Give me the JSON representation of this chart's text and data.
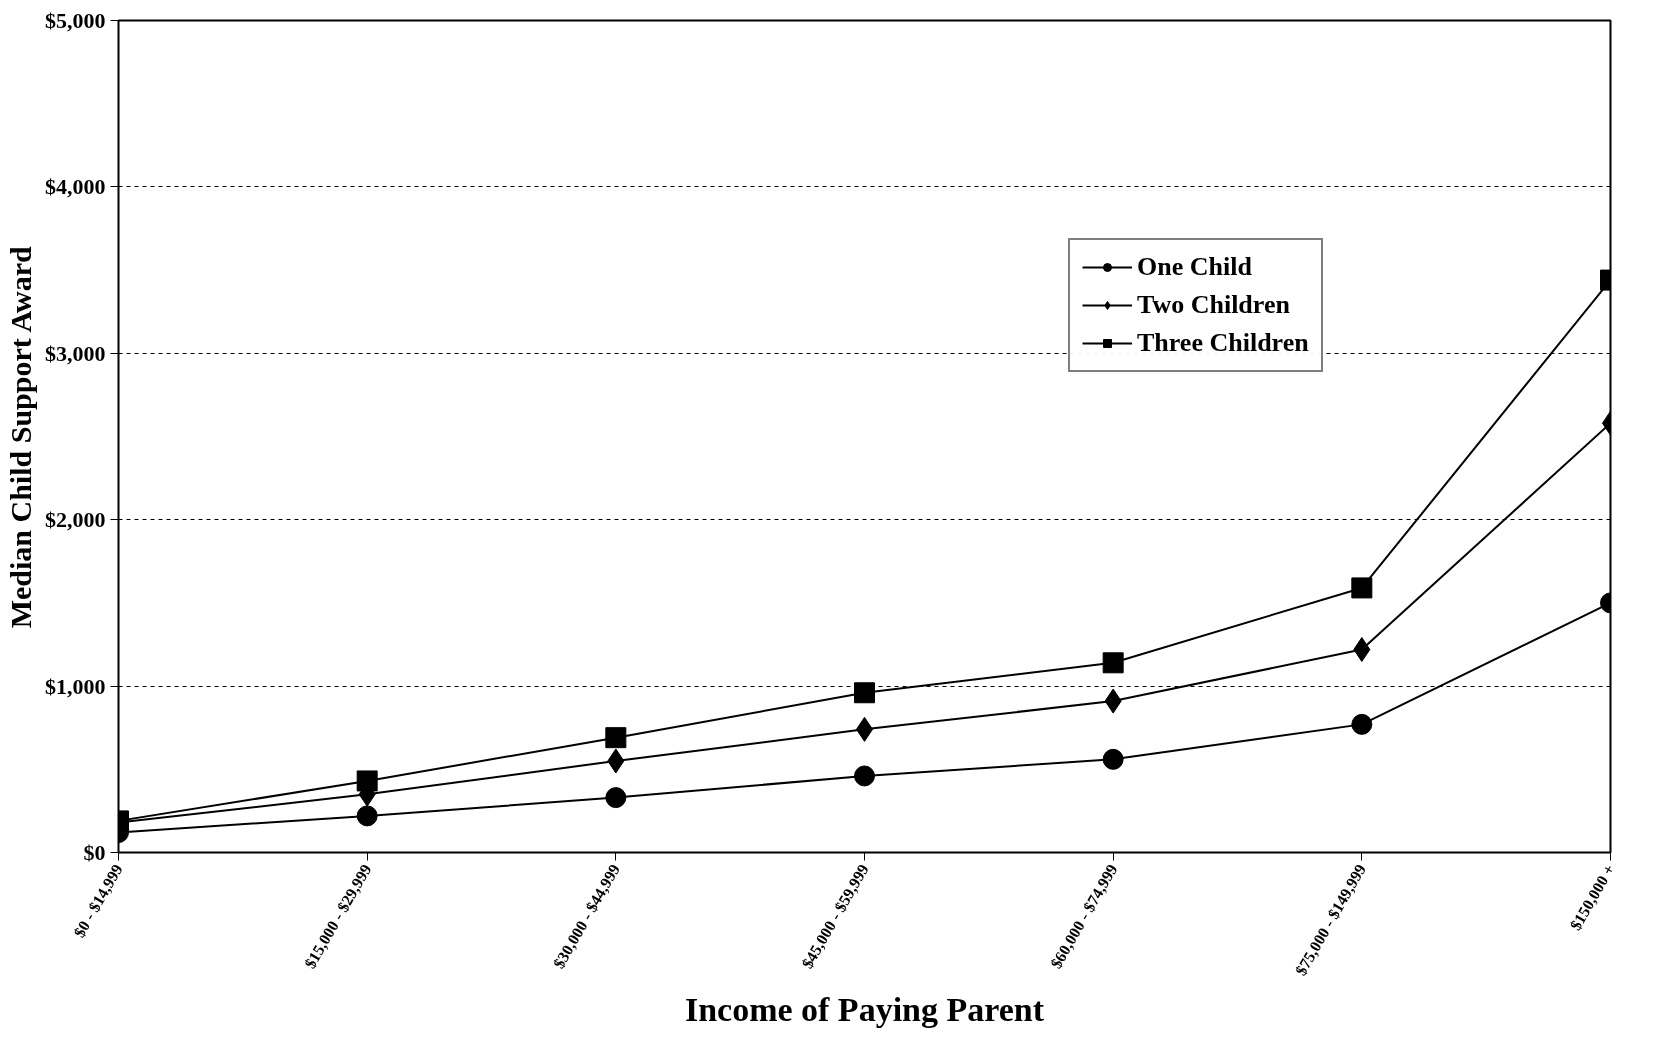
{
  "chart_data": {
    "type": "line",
    "xlabel": "Income of Paying Parent",
    "ylabel": "Median Child Support Award",
    "categories": [
      "$0 - $14,999",
      "$15,000 - $29,999",
      "$30,000 - $44,999",
      "$45,000 - $59,999",
      "$60,000 - $74,999",
      "$75,000 - $149,999",
      "$150,000 +"
    ],
    "series": [
      {
        "name": "One Child",
        "color": "#000000",
        "marker": "circle",
        "values": [
          120,
          220,
          330,
          460,
          560,
          770,
          1500
        ]
      },
      {
        "name": "Two Children",
        "color": "#000000",
        "marker": "diamond",
        "values": [
          180,
          350,
          550,
          740,
          910,
          1220,
          2580
        ]
      },
      {
        "name": "Three Children",
        "color": "#000000",
        "marker": "square",
        "values": [
          190,
          430,
          690,
          960,
          1140,
          1590,
          3440
        ]
      }
    ],
    "ylim": [
      0,
      5000
    ],
    "yticks": [
      {
        "value": 0,
        "label": "$0"
      },
      {
        "value": 1000,
        "label": "$1,000"
      },
      {
        "value": 2000,
        "label": "$2,000"
      },
      {
        "value": 3000,
        "label": "$3,000"
      },
      {
        "value": 4000,
        "label": "$4,000"
      },
      {
        "value": 5000,
        "label": "$5,000"
      }
    ],
    "grid": "y",
    "legend": "top right",
    "line_style": "solid"
  }
}
